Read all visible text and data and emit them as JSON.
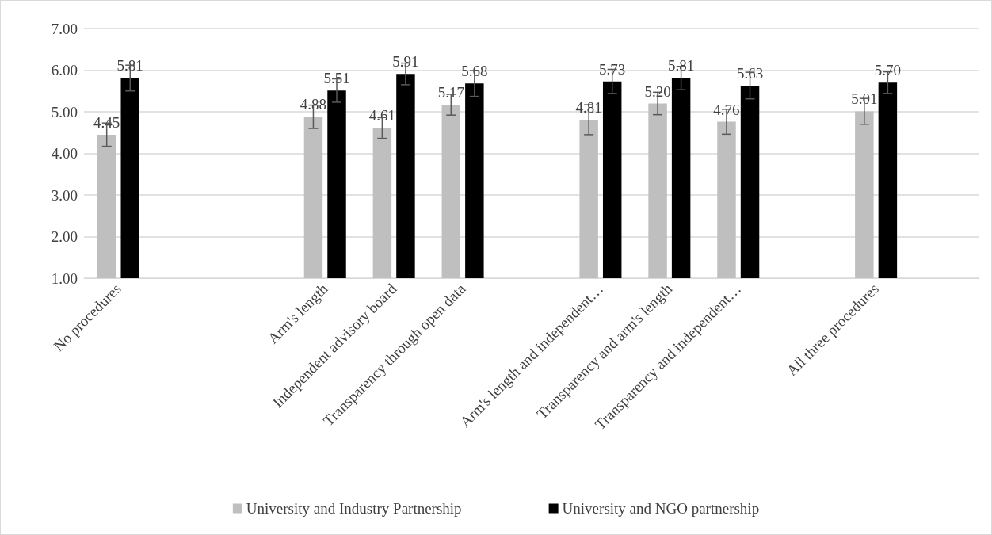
{
  "chart_data": {
    "type": "bar",
    "categories": [
      "No procedures",
      null,
      null,
      "Arm's length",
      "Independent advisory board",
      "Transparency through open data",
      null,
      "Arm's length and independent…",
      "Transparency and arm's length",
      "Transparency and independent…",
      null,
      "All three procedures",
      null
    ],
    "series": [
      {
        "name": "University and Industry Partnership",
        "color": "#bfbfbf",
        "values": [
          4.45,
          null,
          null,
          4.88,
          4.61,
          5.17,
          null,
          4.81,
          5.2,
          4.76,
          null,
          5.01,
          null
        ],
        "value_labels": [
          "4.45",
          null,
          null,
          "4.88",
          "4.61",
          "5.17",
          null,
          "4.81",
          "5.20",
          "4.76",
          null,
          "5.01",
          null
        ],
        "errors": [
          0.28,
          null,
          null,
          0.28,
          0.25,
          0.25,
          null,
          0.36,
          0.27,
          0.3,
          null,
          0.31,
          null
        ]
      },
      {
        "name": "University and NGO partnership",
        "color": "#000000",
        "values": [
          5.81,
          null,
          null,
          5.51,
          5.91,
          5.68,
          null,
          5.73,
          5.81,
          5.63,
          null,
          5.7,
          null
        ],
        "value_labels": [
          "5.81",
          null,
          null,
          "5.51",
          "5.91",
          "5.68",
          null,
          "5.73",
          "5.81",
          "5.63",
          null,
          "5.70",
          null
        ],
        "errors": [
          0.31,
          null,
          null,
          0.28,
          0.26,
          0.31,
          null,
          0.29,
          0.28,
          0.32,
          null,
          0.26,
          null
        ]
      }
    ],
    "ylim": [
      1,
      7
    ],
    "yticks": [
      {
        "value": 1,
        "label": "1.00"
      },
      {
        "value": 2,
        "label": "2.00"
      },
      {
        "value": 3,
        "label": "3.00"
      },
      {
        "value": 4,
        "label": "4.00"
      },
      {
        "value": 5,
        "label": "5.00"
      },
      {
        "value": 6,
        "label": "6.00"
      },
      {
        "value": 7,
        "label": "7.00"
      }
    ],
    "grid": "y",
    "legend": "bottom"
  }
}
